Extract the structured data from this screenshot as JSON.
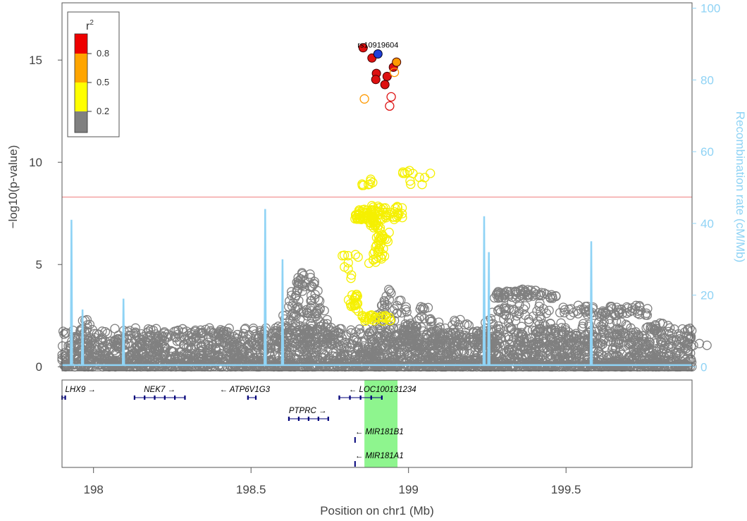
{
  "chart_data": {
    "type": "scatter",
    "xlabel": "Position on chr1 (Mb)",
    "ylabel": "−log10(p-value)",
    "y2label": "Recombination rate (cM/Mb)",
    "xlim": [
      197.9,
      199.9
    ],
    "ylim": [
      -0.2,
      17.8
    ],
    "y2lim": [
      -1.1,
      101.5
    ],
    "x_ticks": [
      "198",
      "198.5",
      "199",
      "199.5"
    ],
    "x_tick_values": [
      198,
      198.5,
      199,
      199.5
    ],
    "y_ticks": [
      "0",
      "5",
      "10",
      "15"
    ],
    "y_tick_values": [
      0,
      5,
      10,
      15
    ],
    "y2_ticks": [
      "0",
      "20",
      "40",
      "60",
      "80",
      "100"
    ],
    "y2_tick_values": [
      0,
      20,
      40,
      60,
      80,
      100
    ],
    "significance_line": 8.3,
    "lead_snp": {
      "label": "rs10919604",
      "x": 198.903,
      "y": 15.3
    },
    "legend": {
      "title": "r",
      "title_sup": "2",
      "labels": [
        "0.8",
        "0.5",
        "0.2"
      ],
      "colors": [
        "#ee0000",
        "#ffa500",
        "#ffff00",
        "#808080"
      ]
    },
    "colors": {
      "lead": "#1f3fd9",
      "high_ld": "#dd1111",
      "mid_ld": "#ff9a00",
      "low_ld": "#f5f000",
      "background": "#808080",
      "recombination": "#8fd3f5",
      "threshold": "#f08080",
      "highlight": "#8ef58e",
      "gene": "#00007a"
    },
    "high_ld_points": [
      {
        "x": 198.856,
        "y": 15.6,
        "filled": true
      },
      {
        "x": 198.884,
        "y": 15.1,
        "filled": true
      },
      {
        "x": 198.898,
        "y": 14.35,
        "filled": true
      },
      {
        "x": 198.896,
        "y": 14.05,
        "filled": true
      },
      {
        "x": 198.925,
        "y": 13.8,
        "filled": true
      },
      {
        "x": 198.932,
        "y": 14.2,
        "filled": true
      },
      {
        "x": 198.952,
        "y": 14.65,
        "filled": true
      },
      {
        "x": 198.962,
        "y": 14.9,
        "filled": true,
        "orange": true
      },
      {
        "x": 198.86,
        "y": 13.1,
        "filled": false,
        "orange": true
      },
      {
        "x": 198.955,
        "y": 14.4,
        "filled": false,
        "orange": true
      },
      {
        "x": 198.945,
        "y": 13.2,
        "filled": false
      },
      {
        "x": 198.94,
        "y": 12.75,
        "filled": false
      }
    ],
    "recombination_peaks": [
      {
        "x": 197.93,
        "rate": 41
      },
      {
        "x": 197.965,
        "rate": 16
      },
      {
        "x": 198.095,
        "rate": 19
      },
      {
        "x": 198.545,
        "rate": 44
      },
      {
        "x": 198.6,
        "rate": 30
      },
      {
        "x": 199.24,
        "rate": 42
      },
      {
        "x": 199.255,
        "rate": 32
      },
      {
        "x": 199.58,
        "rate": 35
      }
    ],
    "highlight_region": [
      198.86,
      198.965
    ],
    "genes": [
      {
        "name": "LHX9",
        "dir": "right",
        "start": 197.9,
        "end": 197.91,
        "row": 0,
        "label_x": 197.91
      },
      {
        "name": "NEK7",
        "dir": "right",
        "start": 198.13,
        "end": 198.29,
        "row": 0,
        "label_x": 198.16
      },
      {
        "name": "ATP6V1G3",
        "dir": "left",
        "start": 198.49,
        "end": 198.515,
        "row": 0,
        "label_x": 198.4
      },
      {
        "name": "LOC100131234",
        "dir": "left",
        "start": 198.78,
        "end": 198.915,
        "row": 0,
        "label_x": 198.81
      },
      {
        "name": "PTPRC",
        "dir": "right",
        "start": 198.62,
        "end": 198.745,
        "row": 1,
        "label_x": 198.62
      },
      {
        "name": "MIR181B1",
        "dir": "left",
        "start": 198.828,
        "end": 198.83,
        "row": 2,
        "label_x": 198.83
      },
      {
        "name": "MIR181A1",
        "dir": "left",
        "start": 198.828,
        "end": 198.83,
        "row": 3,
        "label_x": 198.83
      }
    ]
  }
}
